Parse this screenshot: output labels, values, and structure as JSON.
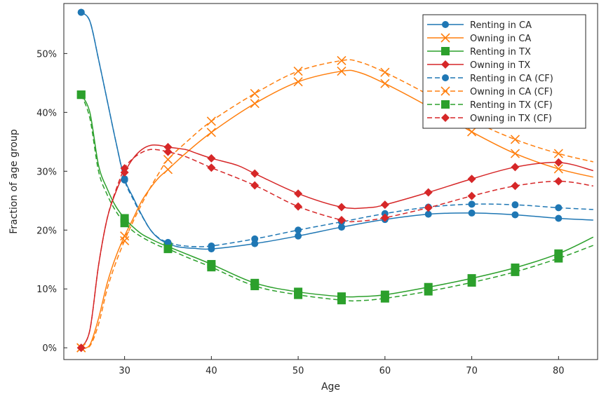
{
  "chart_data": {
    "type": "line",
    "xlabel": "Age",
    "ylabel": "Fraction of age group",
    "xlim": [
      23,
      84.5
    ],
    "ylim": [
      -0.02,
      0.585
    ],
    "xticks": [
      30,
      40,
      50,
      60,
      70,
      80
    ],
    "yticks": [
      0,
      0.1,
      0.2,
      0.3,
      0.4,
      0.5
    ],
    "ytick_labels": [
      "0%",
      "10%",
      "20%",
      "30%",
      "40%",
      "50%"
    ],
    "legend_position": "top-right",
    "grid": false,
    "series": [
      {
        "name": "Renting in CA",
        "color": "#1f77b4",
        "dash": "solid",
        "marker": "circle",
        "x": [
          25,
          26,
          27,
          28,
          29,
          30,
          31,
          32,
          33,
          34,
          35,
          36,
          37,
          38,
          40,
          45,
          50,
          55,
          60,
          65,
          70,
          75,
          80,
          84
        ],
        "y": [
          0.57,
          0.555,
          0.49,
          0.42,
          0.35,
          0.287,
          0.255,
          0.225,
          0.2,
          0.185,
          0.177,
          0.172,
          0.17,
          0.169,
          0.168,
          0.177,
          0.19,
          0.205,
          0.218,
          0.227,
          0.229,
          0.226,
          0.22,
          0.217
        ],
        "marker_x": [
          25,
          30,
          35,
          40,
          45,
          50,
          55,
          60,
          65,
          70,
          75,
          80
        ]
      },
      {
        "name": "Owning in CA",
        "color": "#ff7f0e",
        "dash": "solid",
        "marker": "x",
        "x": [
          25,
          26,
          27,
          28,
          29,
          30,
          31,
          32,
          33,
          34,
          35,
          37,
          40,
          45,
          50,
          55,
          57,
          60,
          65,
          70,
          75,
          80,
          84
        ],
        "y": [
          0.0,
          0.005,
          0.05,
          0.11,
          0.155,
          0.19,
          0.22,
          0.25,
          0.272,
          0.29,
          0.303,
          0.33,
          0.366,
          0.415,
          0.452,
          0.47,
          0.468,
          0.449,
          0.41,
          0.367,
          0.33,
          0.304,
          0.29
        ],
        "marker_x": [
          25,
          30,
          35,
          40,
          45,
          50,
          55,
          60,
          65,
          70,
          75,
          80
        ]
      },
      {
        "name": "Renting in TX",
        "color": "#2ca02c",
        "dash": "solid",
        "marker": "square",
        "x": [
          25,
          26,
          27,
          28,
          29,
          30,
          31,
          32,
          33,
          34,
          35,
          37,
          40,
          45,
          50,
          55,
          57,
          60,
          65,
          70,
          75,
          80,
          84
        ],
        "y": [
          0.43,
          0.4,
          0.31,
          0.27,
          0.24,
          0.22,
          0.205,
          0.193,
          0.185,
          0.178,
          0.172,
          0.16,
          0.142,
          0.11,
          0.095,
          0.087,
          0.087,
          0.09,
          0.103,
          0.118,
          0.136,
          0.16,
          0.188
        ],
        "marker_x": [
          25,
          30,
          35,
          40,
          45,
          50,
          55,
          60,
          65,
          70,
          75,
          80
        ]
      },
      {
        "name": "Owning in TX",
        "color": "#d62728",
        "dash": "solid",
        "marker": "diamond",
        "x": [
          25,
          26,
          27,
          28,
          29,
          30,
          31,
          32,
          33,
          34,
          35,
          37,
          38,
          40,
          43,
          45,
          50,
          55,
          58,
          60,
          65,
          70,
          75,
          80,
          84
        ],
        "y": [
          0.0,
          0.03,
          0.14,
          0.22,
          0.265,
          0.298,
          0.322,
          0.337,
          0.344,
          0.344,
          0.341,
          0.337,
          0.332,
          0.322,
          0.31,
          0.296,
          0.262,
          0.239,
          0.238,
          0.243,
          0.264,
          0.287,
          0.307,
          0.315,
          0.301
        ],
        "marker_x": [
          25,
          30,
          35,
          40,
          45,
          50,
          55,
          60,
          65,
          70,
          75,
          80
        ]
      },
      {
        "name": "Renting in CA (CF)",
        "color": "#1f77b4",
        "dash": "dashed",
        "marker": "circle",
        "x": [
          25,
          26,
          27,
          28,
          29,
          30,
          31,
          32,
          33,
          34,
          35,
          36,
          37,
          38,
          40,
          45,
          50,
          55,
          60,
          65,
          70,
          75,
          80,
          84
        ],
        "y": [
          0.57,
          0.555,
          0.49,
          0.42,
          0.35,
          0.285,
          0.252,
          0.224,
          0.2,
          0.186,
          0.179,
          0.175,
          0.173,
          0.172,
          0.173,
          0.185,
          0.2,
          0.214,
          0.228,
          0.239,
          0.244,
          0.243,
          0.238,
          0.235
        ],
        "marker_x": [
          25,
          30,
          35,
          40,
          45,
          50,
          55,
          60,
          65,
          70,
          75,
          80
        ]
      },
      {
        "name": "Owning in CA (CF)",
        "color": "#ff7f0e",
        "dash": "dashed",
        "marker": "x",
        "x": [
          25,
          26,
          27,
          28,
          29,
          30,
          31,
          32,
          33,
          34,
          35,
          37,
          40,
          45,
          50,
          55,
          57,
          60,
          65,
          70,
          75,
          80,
          84
        ],
        "y": [
          0.0,
          0.003,
          0.04,
          0.1,
          0.145,
          0.182,
          0.215,
          0.245,
          0.273,
          0.298,
          0.32,
          0.348,
          0.385,
          0.432,
          0.47,
          0.488,
          0.486,
          0.468,
          0.43,
          0.387,
          0.354,
          0.33,
          0.316
        ],
        "marker_x": [
          25,
          30,
          35,
          40,
          45,
          50,
          55,
          60,
          65,
          70,
          75,
          80
        ]
      },
      {
        "name": "Renting in TX (CF)",
        "color": "#2ca02c",
        "dash": "dashed",
        "marker": "square",
        "x": [
          25,
          26,
          27,
          28,
          29,
          30,
          31,
          32,
          33,
          34,
          35,
          37,
          40,
          45,
          50,
          55,
          57,
          60,
          65,
          70,
          75,
          80,
          84
        ],
        "y": [
          0.43,
          0.39,
          0.3,
          0.26,
          0.232,
          0.212,
          0.198,
          0.188,
          0.18,
          0.173,
          0.168,
          0.155,
          0.137,
          0.105,
          0.09,
          0.081,
          0.08,
          0.084,
          0.096,
          0.111,
          0.129,
          0.152,
          0.174
        ],
        "marker_x": [
          25,
          30,
          35,
          40,
          45,
          50,
          55,
          60,
          65,
          70,
          75,
          80
        ]
      },
      {
        "name": "Owning in TX (CF)",
        "color": "#d62728",
        "dash": "dashed",
        "marker": "diamond",
        "x": [
          25,
          26,
          27,
          28,
          29,
          30,
          31,
          32,
          33,
          34,
          35,
          37,
          40,
          45,
          50,
          55,
          57,
          60,
          65,
          70,
          75,
          80,
          84
        ],
        "y": [
          0.0,
          0.03,
          0.14,
          0.22,
          0.268,
          0.305,
          0.322,
          0.332,
          0.337,
          0.336,
          0.333,
          0.325,
          0.306,
          0.276,
          0.24,
          0.217,
          0.215,
          0.221,
          0.238,
          0.258,
          0.275,
          0.283,
          0.275
        ],
        "marker_x": [
          25,
          30,
          35,
          40,
          45,
          50,
          55,
          60,
          65,
          70,
          75,
          80
        ]
      }
    ]
  }
}
